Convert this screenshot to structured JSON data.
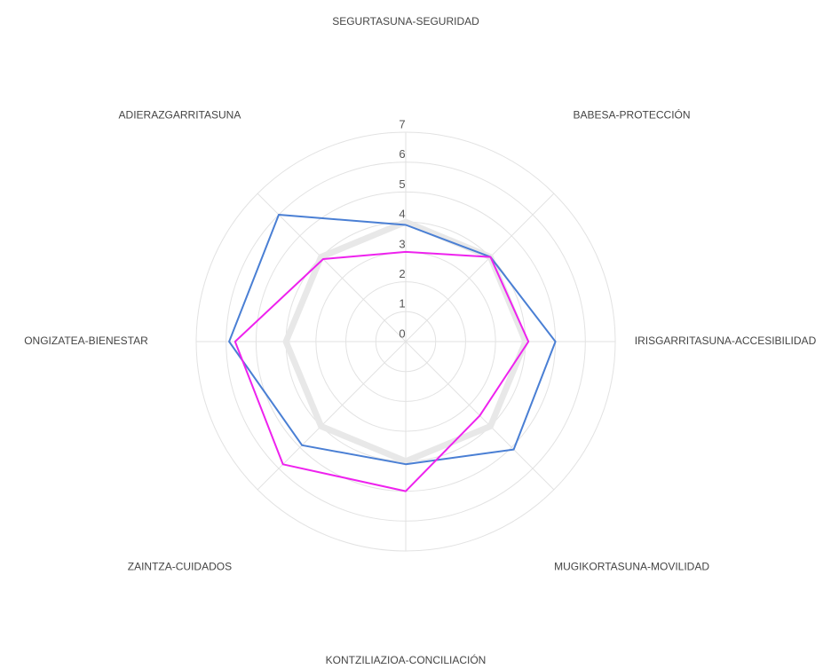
{
  "chart_data": {
    "type": "radar",
    "categories": [
      "SEGURTASUNA-SEGURIDAD",
      "BABESA-PROTECCIÓN",
      "IRISGARRITASUNA-ACCESIBILIDAD",
      "MUGIKORTASUNA-MOVILIDAD",
      "KONTZILIAZIOA-CONCILIACIÓN",
      "ZAINTZA-CUIDADOS",
      "ONGIZATEA-BIENESTAR",
      "ADIERAZGARRITASUNA"
    ],
    "series": [
      {
        "color": "#e8e8e8",
        "values": [
          4,
          4,
          4,
          4,
          4,
          4,
          4,
          4
        ]
      },
      {
        "color": "#4a7fd4",
        "values": [
          3.9,
          4.0,
          5.0,
          5.1,
          4.1,
          4.9,
          5.9,
          6.0
        ]
      },
      {
        "color": "#ee22ee",
        "values": [
          3.0,
          4.0,
          4.1,
          3.5,
          5.0,
          5.8,
          5.7,
          3.9
        ]
      }
    ],
    "ylim": [
      0,
      7
    ],
    "yticks": [
      0,
      1,
      2,
      3,
      4,
      5,
      6,
      7
    ],
    "grid": true
  }
}
